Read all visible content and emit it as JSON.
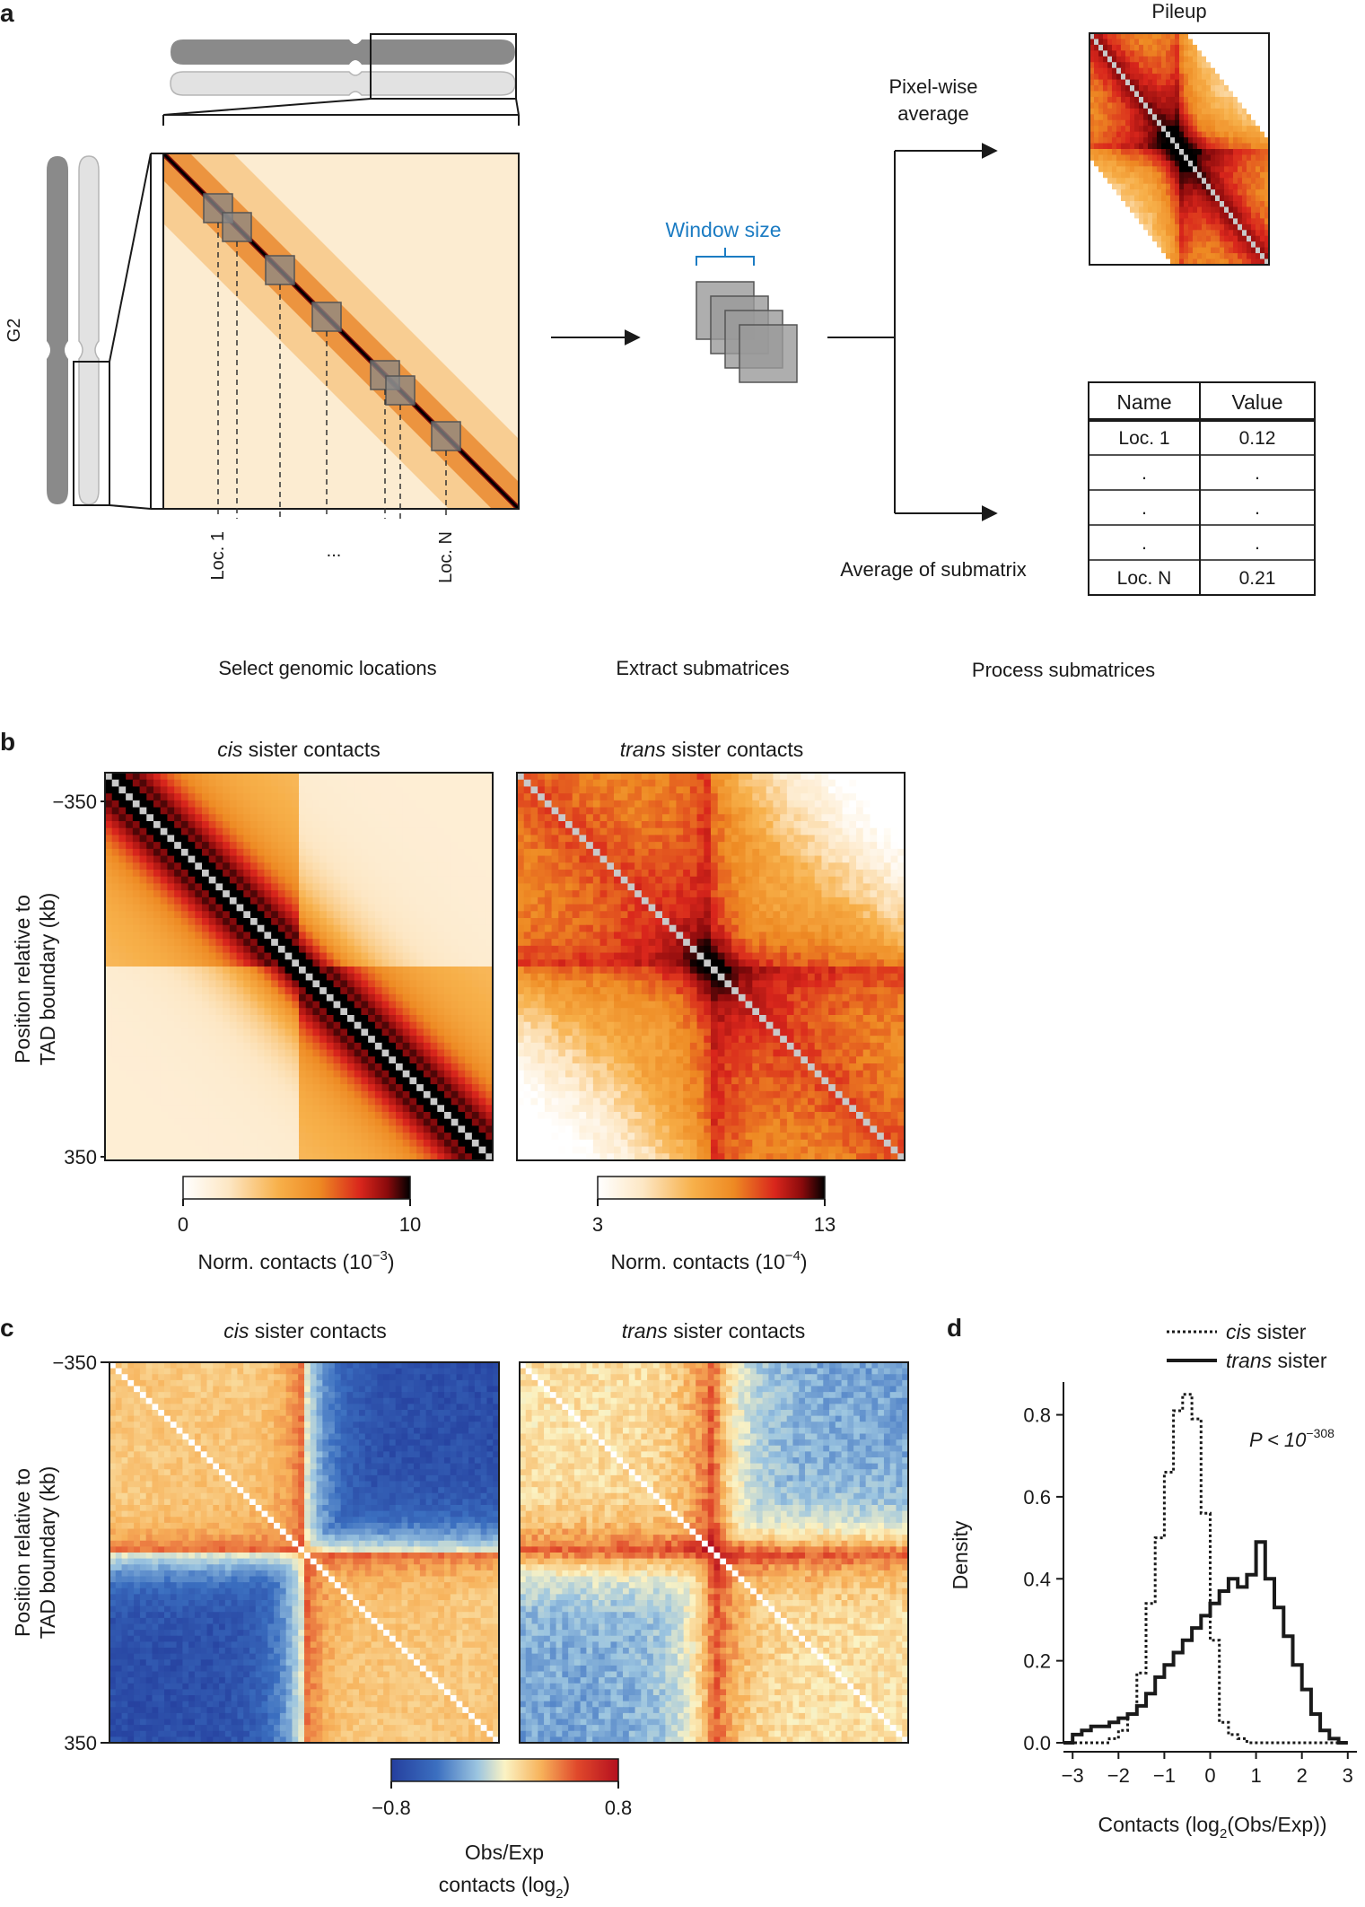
{
  "panel_a": {
    "letter": "a",
    "stage_label": "G2",
    "locus_first": "Loc. 1",
    "locus_ellipsis": "...",
    "locus_last": "Loc. N",
    "window_size_label": "Window size",
    "pileup_title": "Pileup",
    "pixelwise_line1": "Pixel-wise",
    "pixelwise_line2": "average",
    "average_submatrix": "Average of submatrix",
    "step_select": "Select genomic locations",
    "step_extract": "Extract submatrices",
    "step_process": "Process submatrices",
    "table": {
      "headers": [
        "Name",
        "Value"
      ],
      "rows": [
        [
          "Loc. 1",
          "0.12"
        ],
        [
          ".",
          "."
        ],
        [
          ".",
          "."
        ],
        [
          ".",
          "."
        ],
        [
          "Loc. N",
          "0.21"
        ]
      ]
    }
  },
  "panel_b": {
    "letter": "b",
    "title_cis_italic": "cis",
    "title_trans_italic": "trans",
    "title_suffix": " sister contacts",
    "ylabel_line1": "Position relative to",
    "ylabel_line2": "TAD boundary (kb)",
    "y_top": "−350",
    "y_bottom": "350",
    "cbar_cis": {
      "min": "0",
      "max": "10",
      "label": "Norm. contacts (10",
      "exp": "−3",
      "close": ")"
    },
    "cbar_trans": {
      "min": "3",
      "max": "13",
      "label": "Norm. contacts (10",
      "exp": "−4",
      "close": ")"
    }
  },
  "panel_c": {
    "letter": "c",
    "title_cis_italic": "cis",
    "title_trans_italic": "trans",
    "title_suffix": " sister contacts",
    "ylabel_line1": "Position relative to",
    "ylabel_line2": "TAD boundary (kb)",
    "y_top": "−350",
    "y_bottom": "350",
    "cbar_min": "−0.8",
    "cbar_max": "0.8",
    "cbar_label1": "Obs/Exp",
    "cbar_label2": "contacts (log",
    "cbar_label2_sub": "2",
    "cbar_label2_close": ")"
  },
  "colors": {
    "hot_scale": [
      "#ffffff",
      "#fde7c4",
      "#f7b04a",
      "#ee8a23",
      "#d9261c",
      "#8a0a0c",
      "#000000"
    ],
    "rdbu_scale": [
      "#253f9e",
      "#3b6fc0",
      "#9cc5e0",
      "#fbf3c4",
      "#f7b25a",
      "#e0482b",
      "#b5101f"
    ],
    "diagonal_gray": "#c9c9c9",
    "accent_blue": "#1c7cc3"
  },
  "chart_data": {
    "type": "line",
    "letter": "d",
    "xlabel": "Contacts (log",
    "xlabel_sub": "2",
    "xlabel_close": "(Obs/Exp))",
    "ylabel": "Density",
    "xlim": [
      -3.2,
      3.2
    ],
    "ylim": [
      0,
      0.88
    ],
    "xticks": [
      -3,
      -2,
      -1,
      0,
      1,
      2,
      3
    ],
    "xtick_labels": [
      "−3",
      "−2",
      "−1",
      "0",
      "1",
      "2",
      "3"
    ],
    "yticks": [
      0,
      0.2,
      0.4,
      0.6,
      0.8
    ],
    "ytick_labels": [
      "0.0",
      "0.2",
      "0.4",
      "0.6",
      "0.8"
    ],
    "pvalue_prefix": "P < 10",
    "pvalue_exp": "−308",
    "legend": [
      {
        "italic": "cis",
        "label": " sister",
        "style": "dotted"
      },
      {
        "italic": "trans",
        "label": " sister",
        "style": "solid"
      }
    ],
    "bin_edges": [
      -3.2,
      -3.0,
      -2.8,
      -2.6,
      -2.4,
      -2.2,
      -2.0,
      -1.8,
      -1.6,
      -1.4,
      -1.2,
      -1.0,
      -0.8,
      -0.6,
      -0.4,
      -0.2,
      0.0,
      0.2,
      0.4,
      0.6,
      0.8,
      1.0,
      1.2,
      1.4,
      1.6,
      1.8,
      2.0,
      2.2,
      2.4,
      2.6,
      2.8,
      3.0
    ],
    "series": [
      {
        "name": "cis sister",
        "style": "dotted",
        "values": [
          0.0,
          0.0,
          0.0,
          0.0,
          0.0,
          0.01,
          0.03,
          0.07,
          0.17,
          0.34,
          0.5,
          0.66,
          0.81,
          0.85,
          0.79,
          0.56,
          0.25,
          0.05,
          0.02,
          0.01,
          0.0,
          0.0,
          0.0,
          0.0,
          0.0,
          0.0,
          0.0,
          0.0,
          0.0,
          0.0,
          0.0
        ]
      },
      {
        "name": "trans sister",
        "style": "solid",
        "values": [
          0.0,
          0.02,
          0.03,
          0.04,
          0.04,
          0.05,
          0.06,
          0.07,
          0.09,
          0.12,
          0.16,
          0.19,
          0.22,
          0.25,
          0.28,
          0.31,
          0.34,
          0.37,
          0.4,
          0.38,
          0.41,
          0.49,
          0.4,
          0.33,
          0.26,
          0.19,
          0.13,
          0.07,
          0.03,
          0.01,
          0.0
        ]
      }
    ]
  }
}
